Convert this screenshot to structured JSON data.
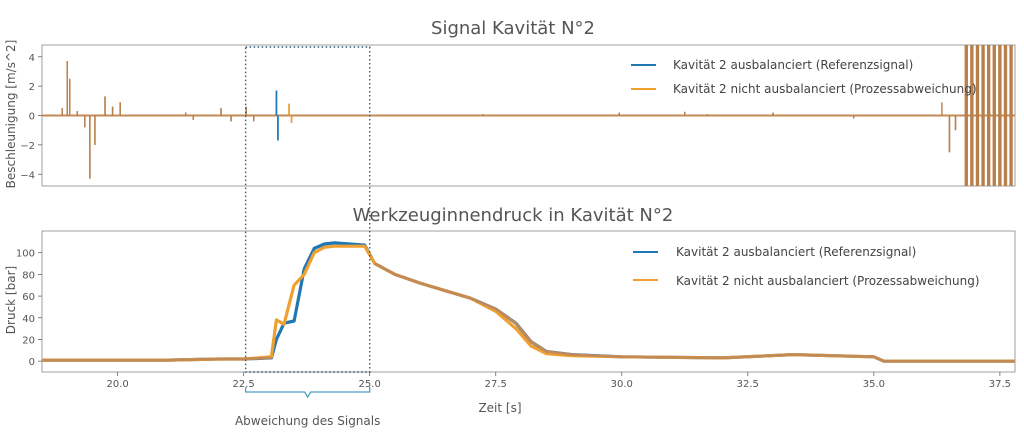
{
  "chart_data": [
    {
      "type": "line",
      "title": "Signal Kavität N°2",
      "ylabel": "Beschleunigung [m/s^2]",
      "xlim": [
        18.5,
        37.8
      ],
      "ylim": [
        -4.8,
        4.8
      ],
      "yticks": [
        4,
        2,
        0,
        -2,
        -4
      ],
      "ytick_labels": [
        "4",
        "2",
        "0",
        "−2",
        "−4"
      ],
      "grid": false,
      "legend": "top-right",
      "series": [
        {
          "name": "Kavität 2 ausbalanciert (Referenzsignal)",
          "color": "#1f77b4",
          "events": [
            [
              18.9,
              0.5
            ],
            [
              19.0,
              3.7
            ],
            [
              19.05,
              2.5
            ],
            [
              19.2,
              0.3
            ],
            [
              19.35,
              -0.8
            ],
            [
              19.45,
              -4.3
            ],
            [
              19.55,
              -2.0
            ],
            [
              19.75,
              1.3
            ],
            [
              19.9,
              0.6
            ],
            [
              20.05,
              0.9
            ],
            [
              21.35,
              0.2
            ],
            [
              21.5,
              -0.3
            ],
            [
              22.05,
              0.5
            ],
            [
              22.25,
              -0.4
            ],
            [
              22.55,
              0.6
            ],
            [
              22.7,
              -0.4
            ],
            [
              23.15,
              1.7
            ],
            [
              23.18,
              -1.7
            ],
            [
              27.25,
              0.1
            ],
            [
              29.95,
              0.2
            ],
            [
              31.25,
              0.25
            ],
            [
              31.7,
              0.1
            ],
            [
              33.0,
              0.2
            ],
            [
              34.6,
              -0.2
            ],
            [
              36.35,
              0.9
            ],
            [
              36.5,
              -2.5
            ],
            [
              36.62,
              -1.0
            ]
          ]
        },
        {
          "name": "Kavität 2 nicht ausbalanciert (Prozessabweichung)",
          "color": "#f0a030",
          "events": [
            [
              18.9,
              0.5
            ],
            [
              19.0,
              3.7
            ],
            [
              19.05,
              2.5
            ],
            [
              19.2,
              0.3
            ],
            [
              19.35,
              -0.8
            ],
            [
              19.45,
              -4.3
            ],
            [
              19.55,
              -2.0
            ],
            [
              19.75,
              1.3
            ],
            [
              19.9,
              0.6
            ],
            [
              20.05,
              0.9
            ],
            [
              21.35,
              0.2
            ],
            [
              21.5,
              -0.3
            ],
            [
              22.05,
              0.5
            ],
            [
              22.25,
              -0.4
            ],
            [
              22.55,
              0.6
            ],
            [
              22.7,
              -0.4
            ],
            [
              23.4,
              0.8
            ],
            [
              23.45,
              -0.5
            ],
            [
              27.25,
              0.1
            ],
            [
              29.95,
              0.2
            ],
            [
              31.25,
              0.25
            ],
            [
              31.7,
              0.1
            ],
            [
              33.0,
              0.2
            ],
            [
              34.6,
              -0.2
            ],
            [
              36.5,
              -2.5
            ],
            [
              36.62,
              -1.0
            ]
          ]
        }
      ],
      "saturated_region": [
        36.8,
        37.8
      ]
    },
    {
      "type": "line",
      "title": "Werkzeuginnendruck in Kavität N°2",
      "xlabel": "Zeit [s]",
      "ylabel": "Druck [bar]",
      "xlim": [
        18.5,
        37.8
      ],
      "ylim": [
        -10,
        120
      ],
      "xticks": [
        20.0,
        22.5,
        25.0,
        27.5,
        30.0,
        32.5,
        35.0,
        37.5
      ],
      "xtick_labels": [
        "20.0",
        "22.5",
        "25.0",
        "27.5",
        "30.0",
        "32.5",
        "35.0",
        "37.5"
      ],
      "yticks": [
        0,
        20,
        40,
        60,
        80,
        100
      ],
      "ytick_labels": [
        "0",
        "20",
        "40",
        "60",
        "80",
        "100"
      ],
      "grid": false,
      "legend": "top-right",
      "series": [
        {
          "name": "Kavität 2 ausbalanciert (Referenzsignal)",
          "color": "#1f77b4",
          "x": [
            18.5,
            21.0,
            22.0,
            22.5,
            23.05,
            23.15,
            23.3,
            23.5,
            23.7,
            23.9,
            24.1,
            24.3,
            24.6,
            24.9,
            25.1,
            25.5,
            26.0,
            26.5,
            27.0,
            27.5,
            27.9,
            28.2,
            28.5,
            29.0,
            30.0,
            32.0,
            33.4,
            35.0,
            35.2,
            36.5,
            37.8
          ],
          "y": [
            1,
            1,
            2,
            2,
            3,
            20,
            35,
            37,
            85,
            104,
            108,
            109,
            108,
            107,
            90,
            80,
            72,
            65,
            58,
            48,
            35,
            18,
            9,
            6,
            4,
            3,
            6,
            4,
            0,
            0,
            0
          ]
        },
        {
          "name": "Kavität 2 nicht ausbalanciert (Prozessabweichung)",
          "color": "#f0a030",
          "x": [
            18.5,
            21.0,
            22.0,
            22.5,
            23.05,
            23.15,
            23.3,
            23.5,
            23.7,
            23.9,
            24.1,
            24.3,
            24.6,
            24.9,
            25.1,
            25.5,
            26.0,
            26.5,
            27.0,
            27.5,
            27.9,
            28.2,
            28.5,
            29.0,
            30.0,
            32.0,
            33.4,
            35.0,
            35.2,
            36.5,
            37.8
          ],
          "y": [
            1,
            1,
            2,
            2,
            4,
            38,
            34,
            70,
            80,
            100,
            105,
            106,
            106,
            106,
            90,
            80,
            72,
            65,
            58,
            46,
            30,
            14,
            7,
            5,
            4,
            3,
            6,
            4,
            0,
            0,
            0
          ]
        }
      ],
      "overlap_color": "#c48a55"
    }
  ],
  "highlight": {
    "label": "Abweichung des Signals",
    "x_range": [
      22.5,
      25.0
    ]
  }
}
